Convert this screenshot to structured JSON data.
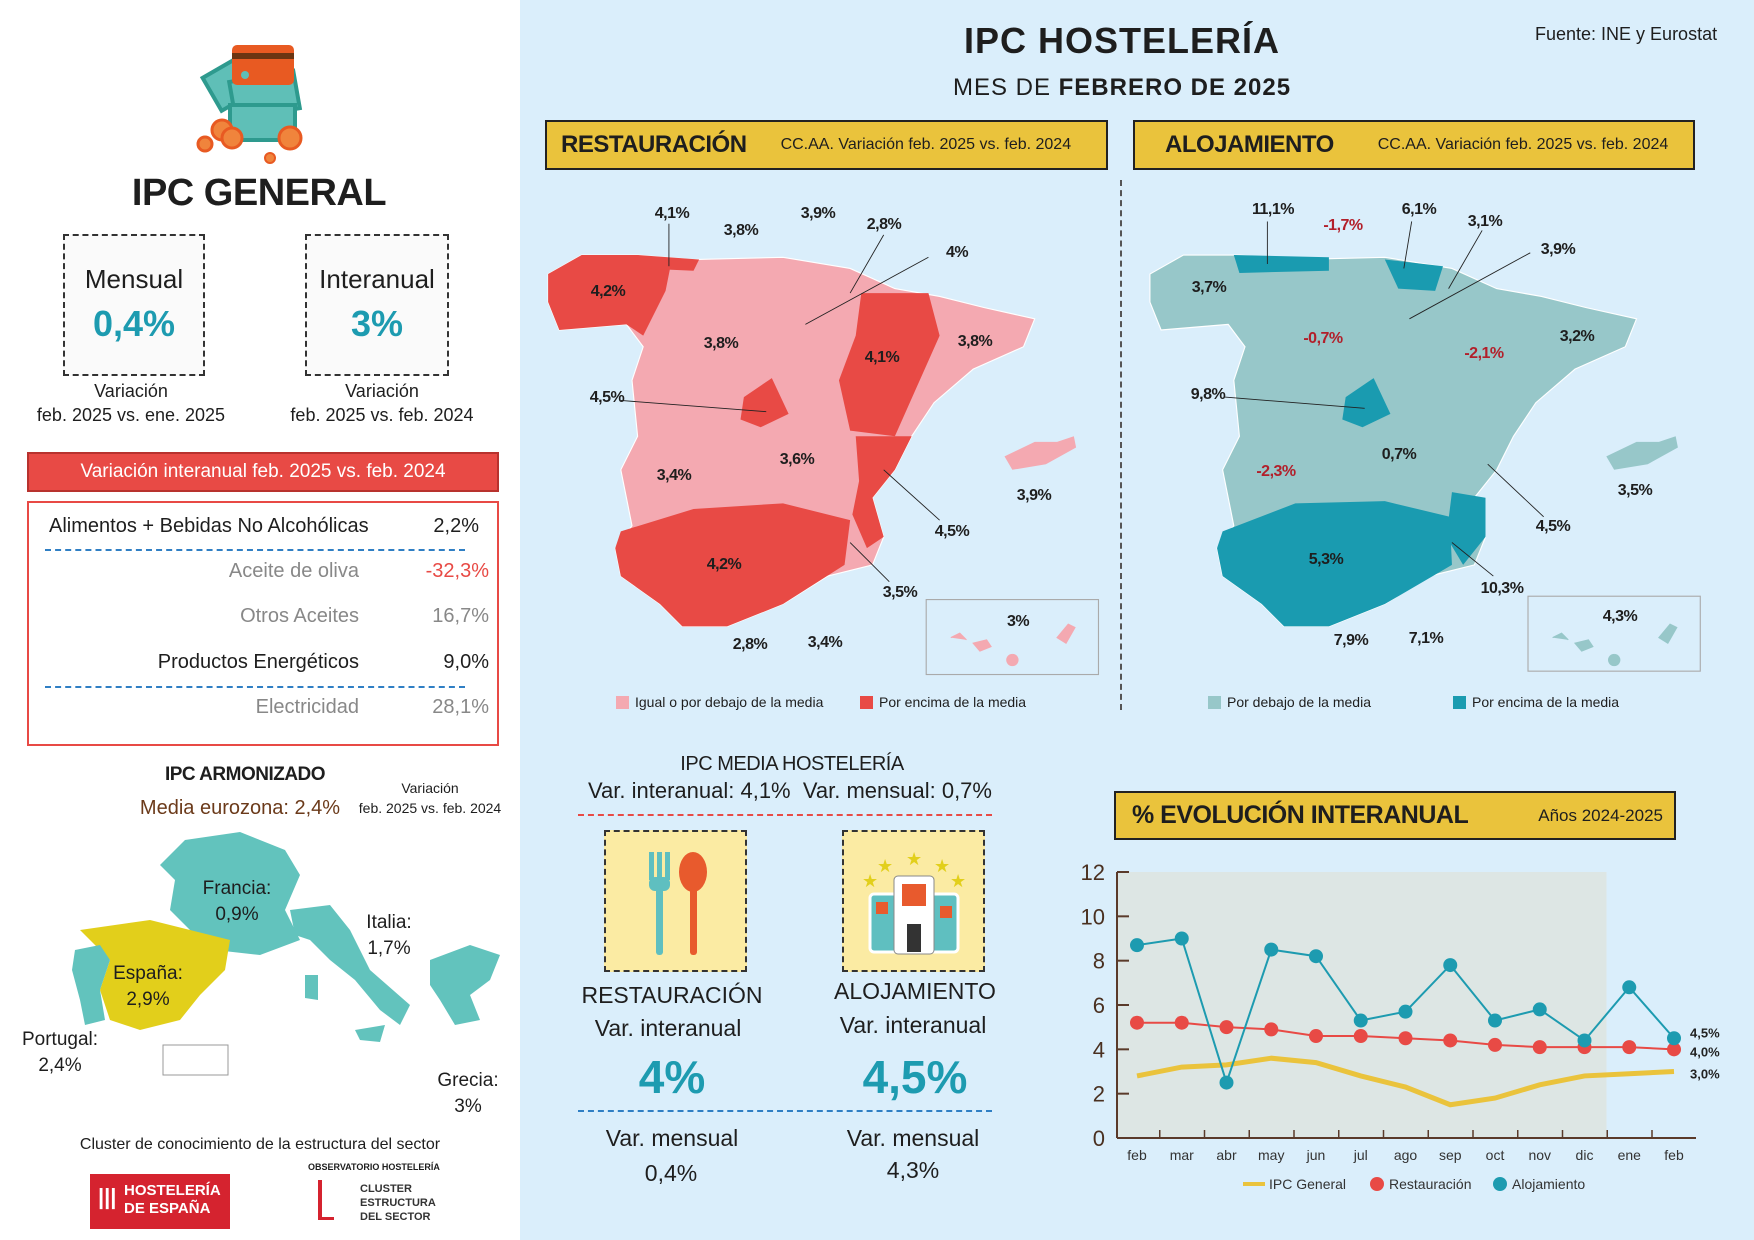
{
  "header": {
    "title": "IPC HOSTELERÍA",
    "subtitle_prefix": "MES DE ",
    "subtitle_bold": "FEBRERO DE 2025",
    "source": "Fuente: INE y Eurostat"
  },
  "ipc_general": {
    "title": "IPC GENERAL",
    "monthly": {
      "label": "Mensual",
      "value": "0,4%",
      "caption1": "Variación",
      "caption2": "feb. 2025 vs. ene. 2025"
    },
    "annual": {
      "label": "Interanual",
      "value": "3%",
      "caption1": "Variación",
      "caption2": "feb. 2025 vs. feb. 2024"
    }
  },
  "breakdown": {
    "title": "Variación interanual feb. 2025 vs. feb. 2024",
    "rows": [
      {
        "label": "Alimentos + Bebidas No Alcohólicas",
        "value": "2,2%",
        "style": "main"
      },
      {
        "label": "Aceite de oliva",
        "value": "-32,3%",
        "style": "sub-neg"
      },
      {
        "label": "Otros Aceites",
        "value": "16,7%",
        "style": "sub"
      },
      {
        "label": "Productos Energéticos",
        "value": "9,0%",
        "style": "main"
      },
      {
        "label": "Electricidad",
        "value": "28,1%",
        "style": "sub"
      }
    ]
  },
  "armonizado": {
    "title": "IPC ARMONIZADO",
    "eurozone": "Media eurozona: 2,4%",
    "variation1": "Variación",
    "variation2": "feb. 2025 vs. feb. 2024",
    "countries": [
      {
        "name": "Francia:",
        "value": "0,9%"
      },
      {
        "name": "Italia:",
        "value": "1,7%"
      },
      {
        "name": "España:",
        "value": "2,9%"
      },
      {
        "name": "Portugal:",
        "value": "2,4%"
      },
      {
        "name": "Grecia:",
        "value": "3%"
      }
    ]
  },
  "footer": {
    "cluster_text": "Cluster de conocimiento de la estructura del sector",
    "logo1_line1": "HOSTELERÍA",
    "logo1_line2": "DE ESPAÑA",
    "logo2_top": "OBSERVATORIO HOSTELERÍA",
    "logo2_line1": "CLUSTER",
    "logo2_line2": "ESTRUCTURA",
    "logo2_line3": "DEL SECTOR"
  },
  "restauracion_map": {
    "title": "RESTAURACIÓN",
    "subtitle": "CC.AA. Variación feb. 2025 vs. feb. 2024",
    "labels": [
      "4,1%",
      "3,8%",
      "3,9%",
      "2,8%",
      "4%",
      "4,2%",
      "3,8%",
      "4,1%",
      "3,8%",
      "4,5%",
      "3,6%",
      "3,4%",
      "3,9%",
      "4,5%",
      "4,2%",
      "3,5%",
      "2,8%",
      "3,4%",
      "3%"
    ],
    "legend": [
      {
        "label": "Igual o por debajo de la media",
        "color": "#f4a9b1"
      },
      {
        "label": "Por encima de la media",
        "color": "#e84a45"
      }
    ]
  },
  "alojamiento_map": {
    "title": "ALOJAMIENTO",
    "subtitle": "CC.AA. Variación feb. 2025 vs. feb. 2024",
    "labels": [
      "11,1%",
      "-1,7%",
      "6,1%",
      "3,1%",
      "3,9%",
      "3,7%",
      "-0,7%",
      "-2,1%",
      "3,2%",
      "9,8%",
      "0,7%",
      "-2,3%",
      "3,5%",
      "4,5%",
      "5,3%",
      "10,3%",
      "7,9%",
      "7,1%",
      "4,3%"
    ],
    "legend": [
      {
        "label": "Por debajo de la media",
        "color": "#97c7c9"
      },
      {
        "label": "Por encima de la media",
        "color": "#1a9bb0"
      }
    ]
  },
  "media": {
    "title": "IPC MEDIA HOSTELERÍA",
    "line": "Var. interanual: 4,1%  Var. mensual: 0,7%",
    "restauracion": {
      "title": "RESTAURACIÓN",
      "annual_label": "Var. interanual",
      "annual": "4%",
      "monthly_label": "Var. mensual",
      "monthly": "0,4%"
    },
    "alojamiento": {
      "title": "ALOJAMIENTO",
      "annual_label": "Var. interanual",
      "annual": "4,5%",
      "monthly_label": "Var. mensual",
      "monthly": "4,3%"
    }
  },
  "colors": {
    "teal": "#1d9bb0",
    "red": "#e84a45",
    "yellow": "#eac33c",
    "ipc_line": "#eac33c"
  },
  "chart_data": {
    "type": "line",
    "title": "% EVOLUCIÓN INTERANUAL",
    "subtitle": "Años 2024-2025",
    "categories": [
      "feb",
      "mar",
      "abr",
      "may",
      "jun",
      "jul",
      "ago",
      "sep",
      "oct",
      "nov",
      "dic",
      "ene",
      "feb"
    ],
    "ylim": [
      0,
      12
    ],
    "yticks": [
      0,
      2,
      4,
      6,
      8,
      10,
      12
    ],
    "legend": "bottom",
    "grid": false,
    "series": [
      {
        "name": "IPC General",
        "color": "#eac33c",
        "values": [
          2.8,
          3.2,
          3.3,
          3.6,
          3.4,
          2.8,
          2.3,
          1.5,
          1.8,
          2.4,
          2.8,
          2.9,
          3.0
        ],
        "end_label": "3,0%"
      },
      {
        "name": "Restauración",
        "color": "#e84a45",
        "values": [
          5.2,
          5.2,
          5.0,
          4.9,
          4.6,
          4.6,
          4.5,
          4.4,
          4.2,
          4.1,
          4.1,
          4.1,
          4.0
        ],
        "end_label": "4,0%"
      },
      {
        "name": "Alojamiento",
        "color": "#1d9bb0",
        "values": [
          8.7,
          9.0,
          2.5,
          8.5,
          8.2,
          5.3,
          5.7,
          7.8,
          5.3,
          5.8,
          4.4,
          6.8,
          4.5
        ],
        "end_label": "4,5%"
      }
    ]
  }
}
